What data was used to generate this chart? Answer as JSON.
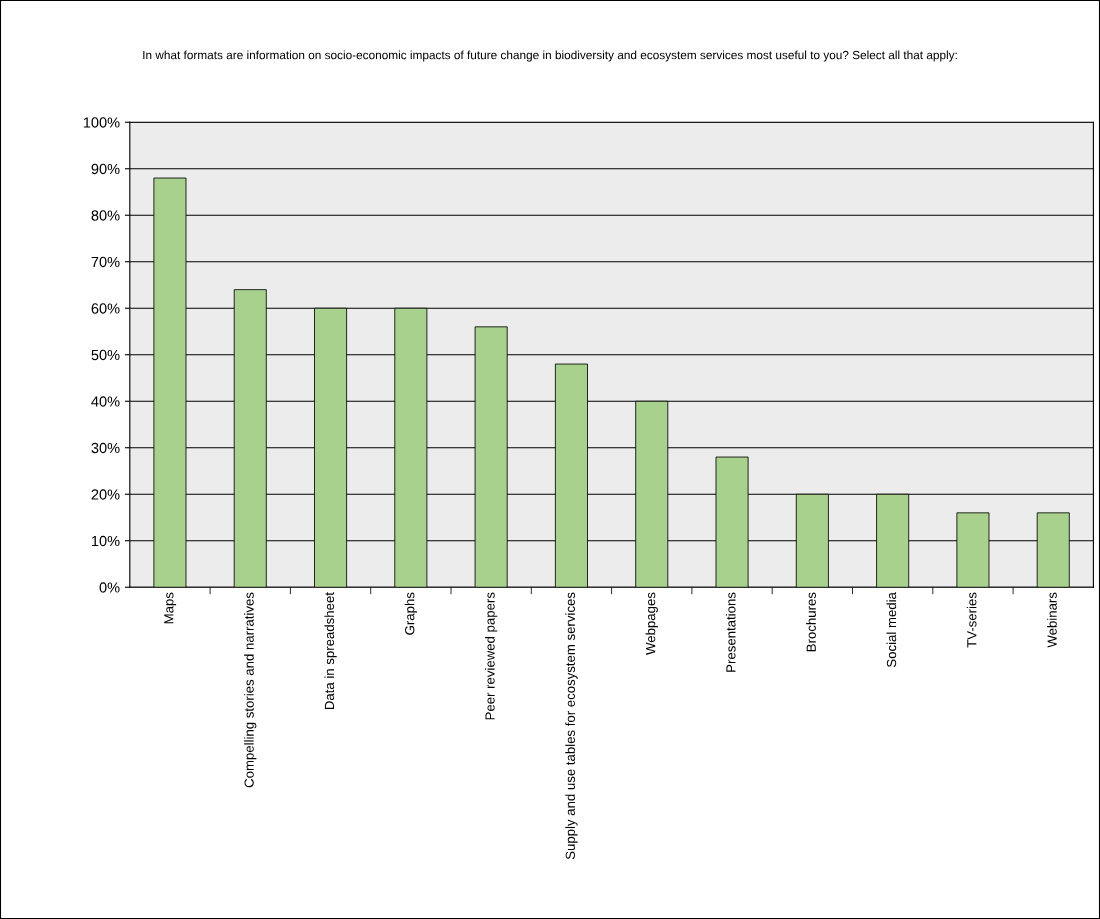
{
  "chart_data": {
    "type": "bar",
    "title": "In what formats are information on socio-economic impacts of future change in biodiversity and ecosystem services most useful to you? Select all that apply:",
    "categories": [
      "Maps",
      "Compelling stories and narratives",
      "Data in spreadsheet",
      "Graphs",
      "Peer reviewed papers",
      "Supply and use tables for ecosystem services",
      "Webpages",
      "Presentations",
      "Brochures",
      "Social media",
      "TV-series",
      "Webinars"
    ],
    "values": [
      88,
      64,
      60,
      60,
      56,
      48,
      40,
      28,
      20,
      20,
      16,
      16
    ],
    "color": "#a9d18e",
    "ylim": [
      0,
      100
    ],
    "yticks": [
      {
        "value": 0,
        "label": "0%"
      },
      {
        "value": 10,
        "label": "10%"
      },
      {
        "value": 20,
        "label": "20%"
      },
      {
        "value": 30,
        "label": "30%"
      },
      {
        "value": 40,
        "label": "40%"
      },
      {
        "value": 50,
        "label": "50%"
      },
      {
        "value": 60,
        "label": "60%"
      },
      {
        "value": 70,
        "label": "70%"
      },
      {
        "value": 80,
        "label": "80%"
      },
      {
        "value": 90,
        "label": "90%"
      },
      {
        "value": 100,
        "label": "100%"
      }
    ],
    "grid": "y",
    "legend": false
  }
}
